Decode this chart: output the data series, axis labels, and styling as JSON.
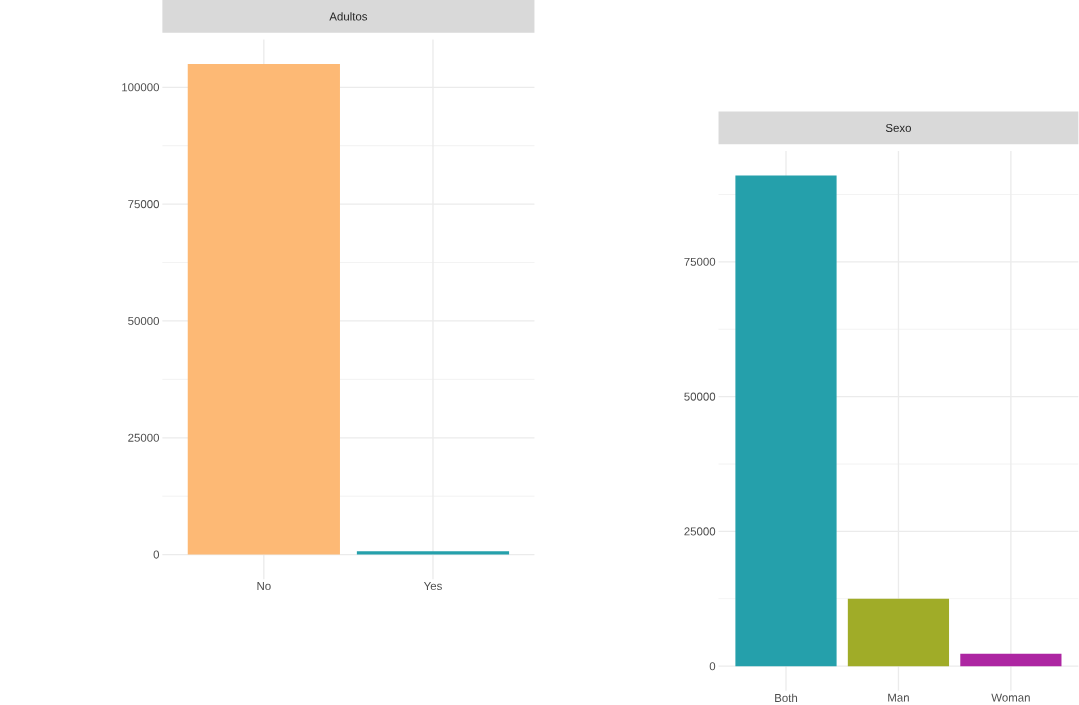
{
  "chart_data": [
    {
      "type": "bar",
      "title": "Adultos",
      "categories": [
        "No",
        "Yes"
      ],
      "values": [
        105000,
        700
      ],
      "colors": [
        "#fdb975",
        "#25a0ab"
      ],
      "ylim": [
        -5250,
        110250
      ],
      "yticks": [
        0,
        {
          "value": 12500,
          "label": null
        },
        25000,
        {
          "value": 37500,
          "label": null
        },
        50000,
        {
          "value": 62500,
          "label": null
        },
        75000,
        {
          "value": 87500,
          "label": null
        },
        100000
      ],
      "grid": true
    },
    {
      "type": "bar",
      "title": "Sexo",
      "categories": [
        "Both",
        "Man",
        "Woman"
      ],
      "values": [
        91000,
        12500,
        2300
      ],
      "colors": [
        "#25a0ab",
        "#a0ac28",
        "#ad26a2"
      ],
      "ylim": [
        -4550,
        95550
      ],
      "yticks": [
        0,
        {
          "value": 12500,
          "label": null
        },
        25000,
        {
          "value": 37500,
          "label": null
        },
        50000,
        {
          "value": 62500,
          "label": null
        },
        75000,
        {
          "value": 87500,
          "label": null
        }
      ],
      "grid": true
    }
  ]
}
